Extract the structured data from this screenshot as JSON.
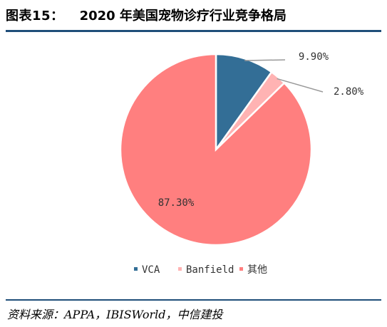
{
  "header": {
    "figure_label": "图表15：",
    "title": "2020 年美国宠物诊疗行业竞争格局"
  },
  "source": "资料来源：APPA，IBISWorld，中信建投",
  "chart_data": {
    "type": "pie",
    "title": "2020 年美国宠物诊疗行业竞争格局",
    "slices": [
      {
        "name": "VCA",
        "value": 9.9,
        "label": "9.90%",
        "color": "#336e96"
      },
      {
        "name": "Banfield",
        "value": 2.8,
        "label": "2.80%",
        "color": "#ffb3b3"
      },
      {
        "name": "其他",
        "value": 87.3,
        "label": "87.30%",
        "color": "#ff7f7f"
      }
    ],
    "start_angle": "12 o'clock",
    "direction": "clockwise",
    "legend_position": "bottom"
  }
}
